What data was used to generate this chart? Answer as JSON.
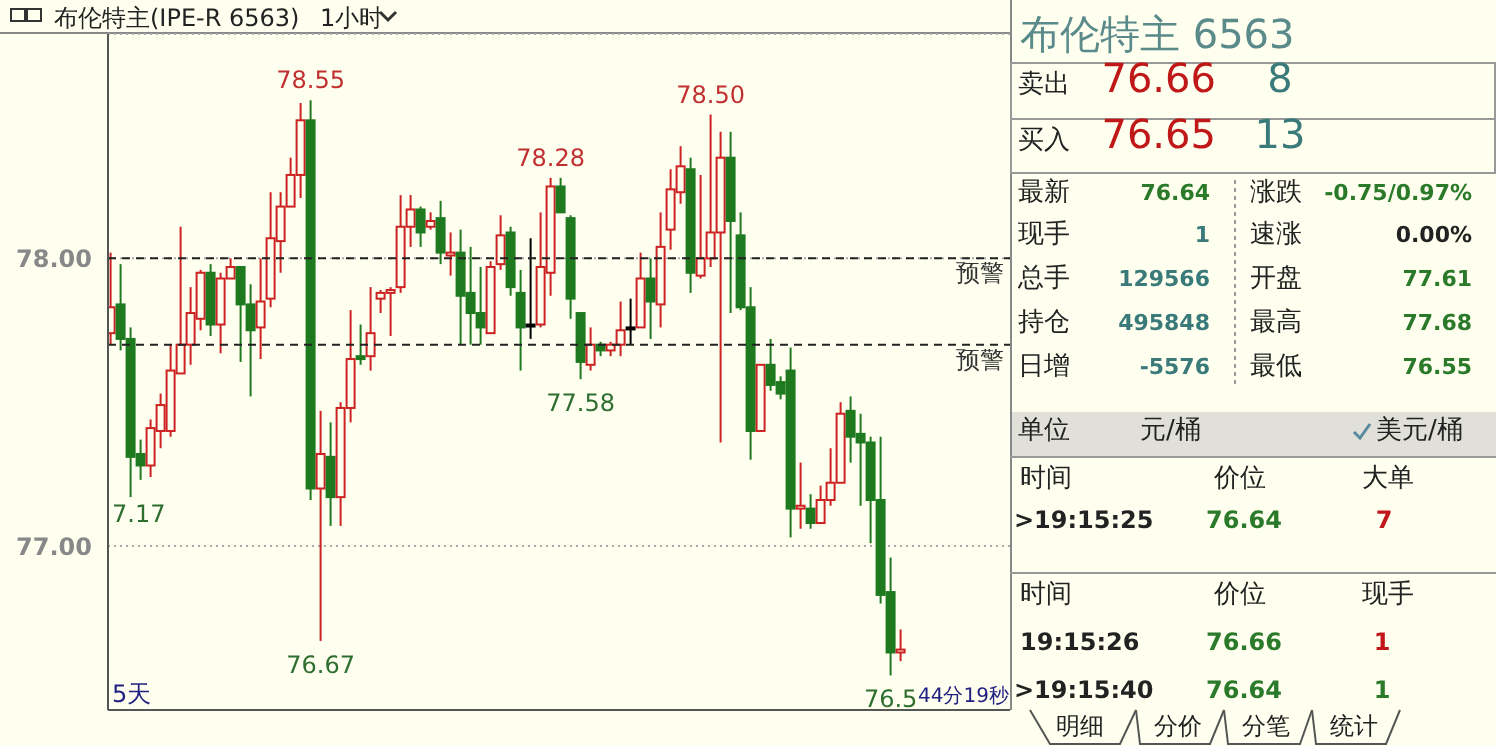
{
  "chart_data": [
    {
      "type": "candlestick",
      "title": "布伦特主(IPE-R 6563)",
      "subtitle": "1小时",
      "categories": [
        null,
        null,
        null,
        null,
        null,
        null,
        null,
        null,
        null,
        null,
        null,
        null,
        null,
        null,
        null,
        null,
        null,
        null,
        null,
        null,
        null,
        null,
        null,
        null,
        null,
        null,
        null,
        null,
        null,
        null,
        null,
        null,
        null,
        null,
        null,
        null,
        null,
        null,
        null,
        null,
        null,
        null,
        null,
        null,
        null,
        null,
        null,
        null,
        null,
        null,
        null,
        null,
        null,
        null,
        null,
        null,
        null,
        null,
        null,
        null,
        null,
        null,
        null,
        null,
        null,
        null,
        null,
        null,
        null,
        null,
        null,
        null,
        null,
        null,
        null,
        null,
        null,
        null,
        null,
        null
      ],
      "ohlc": [
        [
          77.74,
          78.02,
          77.7,
          77.83
        ],
        [
          77.84,
          77.98,
          77.68,
          77.72
        ],
        [
          77.72,
          77.76,
          77.17,
          77.31
        ],
        [
          77.32,
          77.37,
          77.23,
          77.28
        ],
        [
          77.28,
          77.44,
          77.24,
          77.41
        ],
        [
          77.4,
          77.53,
          77.34,
          77.49
        ],
        [
          77.4,
          77.7,
          77.38,
          77.61
        ],
        [
          77.6,
          78.11,
          77.6,
          77.7
        ],
        [
          77.7,
          77.9,
          77.63,
          77.81
        ],
        [
          77.79,
          77.96,
          77.75,
          77.95
        ],
        [
          77.95,
          77.98,
          77.73,
          77.77
        ],
        [
          77.77,
          77.95,
          77.67,
          77.93
        ],
        [
          77.93,
          78.0,
          77.93,
          77.97
        ],
        [
          77.97,
          77.97,
          77.64,
          77.84
        ],
        [
          77.84,
          77.91,
          77.52,
          77.75
        ],
        [
          77.76,
          78.0,
          77.65,
          77.85
        ],
        [
          77.86,
          78.23,
          77.83,
          78.07
        ],
        [
          78.06,
          78.23,
          77.95,
          78.18
        ],
        [
          78.18,
          78.35,
          78.18,
          78.29
        ],
        [
          78.29,
          78.54,
          78.21,
          78.48
        ],
        [
          78.48,
          78.55,
          77.16,
          77.2
        ],
        [
          77.2,
          77.47,
          76.67,
          77.32
        ],
        [
          77.31,
          77.43,
          77.07,
          77.17
        ],
        [
          77.17,
          77.5,
          77.07,
          77.48
        ],
        [
          77.48,
          77.82,
          77.43,
          77.65
        ],
        [
          77.66,
          77.77,
          77.63,
          77.65
        ],
        [
          77.66,
          77.9,
          77.61,
          77.74
        ],
        [
          77.86,
          77.89,
          77.81,
          77.88
        ],
        [
          77.88,
          77.9,
          77.73,
          77.89
        ],
        [
          77.9,
          78.22,
          77.88,
          78.11
        ],
        [
          78.11,
          78.22,
          78.04,
          78.17
        ],
        [
          78.17,
          78.18,
          78.04,
          78.09
        ],
        [
          78.11,
          78.16,
          78.1,
          78.13
        ],
        [
          78.14,
          78.2,
          77.98,
          78.02
        ],
        [
          78.01,
          78.09,
          77.94,
          78.02
        ],
        [
          78.02,
          78.1,
          77.7,
          77.87
        ],
        [
          77.88,
          78.04,
          77.7,
          77.81
        ],
        [
          77.81,
          77.97,
          77.7,
          77.76
        ],
        [
          77.74,
          77.99,
          77.74,
          77.97
        ],
        [
          77.98,
          78.15,
          77.96,
          78.08
        ],
        [
          78.09,
          78.11,
          77.87,
          77.9
        ],
        [
          77.88,
          77.96,
          77.61,
          77.76
        ],
        [
          77.77,
          78.07,
          77.72,
          77.77
        ],
        [
          77.77,
          78.16,
          77.76,
          77.97
        ],
        [
          77.95,
          78.28,
          77.87,
          78.25
        ],
        [
          78.25,
          78.28,
          78.16,
          78.16
        ],
        [
          78.14,
          78.15,
          77.79,
          77.86
        ],
        [
          77.81,
          77.81,
          77.58,
          77.64
        ],
        [
          77.63,
          77.76,
          77.61,
          77.7
        ],
        [
          77.7,
          77.71,
          77.66,
          77.68
        ],
        [
          77.68,
          77.71,
          77.66,
          77.7
        ],
        [
          77.7,
          77.85,
          77.66,
          77.75
        ],
        [
          77.76,
          77.86,
          77.7,
          77.76
        ],
        [
          77.76,
          78.02,
          77.76,
          77.93
        ],
        [
          77.93,
          78.0,
          77.72,
          77.85
        ],
        [
          77.84,
          78.16,
          77.76,
          78.04
        ],
        [
          78.1,
          78.31,
          78.03,
          78.24
        ],
        [
          78.23,
          78.39,
          78.19,
          78.32
        ],
        [
          78.31,
          78.35,
          77.88,
          77.95
        ],
        [
          77.94,
          78.29,
          77.93,
          78.0
        ],
        [
          78.0,
          78.5,
          77.97,
          78.09
        ],
        [
          78.09,
          78.44,
          77.36,
          78.35
        ],
        [
          78.35,
          78.44,
          77.81,
          78.13
        ],
        [
          78.08,
          78.16,
          77.82,
          77.83
        ],
        [
          77.83,
          77.9,
          77.3,
          77.4
        ],
        [
          77.4,
          77.63,
          77.4,
          77.63
        ],
        [
          77.63,
          77.72,
          77.54,
          77.56
        ],
        [
          77.57,
          77.59,
          77.51,
          77.53
        ],
        [
          77.61,
          77.69,
          77.03,
          77.13
        ],
        [
          77.13,
          77.29,
          77.06,
          77.14
        ],
        [
          77.13,
          77.18,
          77.06,
          77.08
        ],
        [
          77.08,
          77.21,
          77.08,
          77.16
        ],
        [
          77.16,
          77.34,
          77.14,
          77.22
        ],
        [
          77.22,
          77.5,
          77.22,
          77.46
        ],
        [
          77.47,
          77.52,
          77.29,
          77.38
        ],
        [
          77.39,
          77.46,
          77.14,
          77.36
        ],
        [
          77.36,
          77.38,
          77.01,
          77.16
        ],
        [
          77.16,
          77.38,
          76.8,
          76.83
        ],
        [
          76.84,
          76.96,
          76.55,
          76.63
        ],
        [
          76.63,
          76.71,
          76.6,
          76.64
        ]
      ],
      "colors": [
        "#cc2222",
        "#1f7a1f",
        "#1f7a1f",
        "#1f7a1f",
        "#cc2222",
        "#cc2222",
        "#cc2222",
        "#cc2222",
        "#cc2222",
        "#cc2222",
        "#1f7a1f",
        "#cc2222",
        "#cc2222",
        "#1f7a1f",
        "#1f7a1f",
        "#cc2222",
        "#cc2222",
        "#cc2222",
        "#cc2222",
        "#cc2222",
        "#1f7a1f",
        "#cc2222",
        "#1f7a1f",
        "#cc2222",
        "#cc2222",
        "#1f7a1f",
        "#cc2222",
        "#cc2222",
        "#cc2222",
        "#cc2222",
        "#cc2222",
        "#1f7a1f",
        "#cc2222",
        "#1f7a1f",
        "#cc2222",
        "#1f7a1f",
        "#1f7a1f",
        "#1f7a1f",
        "#cc2222",
        "#cc2222",
        "#1f7a1f",
        "#1f7a1f",
        "#000000",
        "#cc2222",
        "#cc2222",
        "#1f7a1f",
        "#1f7a1f",
        "#1f7a1f",
        "#cc2222",
        "#1f7a1f",
        "#cc2222",
        "#cc2222",
        "#000000",
        "#cc2222",
        "#1f7a1f",
        "#cc2222",
        "#cc2222",
        "#cc2222",
        "#1f7a1f",
        "#cc2222",
        "#cc2222",
        "#cc2222",
        "#1f7a1f",
        "#1f7a1f",
        "#1f7a1f",
        "#cc2222",
        "#1f7a1f",
        "#1f7a1f",
        "#1f7a1f",
        "#cc2222",
        "#1f7a1f",
        "#cc2222",
        "#cc2222",
        "#cc2222",
        "#1f7a1f",
        "#1f7a1f",
        "#1f7a1f",
        "#1f7a1f",
        "#1f7a1f",
        "#cc2222"
      ],
      "ylim": [
        76.43,
        78.78
      ],
      "yticks": [
        {
          "value": 77,
          "label": "77.00"
        },
        {
          "value": 78,
          "label": "78.00"
        }
      ],
      "grid": "y",
      "tick_labels": "y",
      "ref_lines": [
        {
          "axis": "y",
          "value": 78,
          "label": "预警",
          "line_style": "dashed"
        },
        {
          "axis": "y",
          "value": 77.7,
          "label": "预警",
          "line_style": "dashed"
        }
      ],
      "annotations": [
        {
          "text": "78.55",
          "y": 78.55
        },
        {
          "text": "76.67",
          "y": 76.67
        },
        {
          "text": "78.28",
          "y": 78.28
        },
        {
          "text": "77.58",
          "y": 77.58
        },
        {
          "text": "78.50",
          "y": 78.5
        },
        {
          "text": "76.5",
          "y": 76.55
        },
        "5天",
        "44分19秒",
        "7.17"
      ]
    },
    {
      "type": "other",
      "title": "布伦特主 6563",
      "annotations": [
        "卖出",
        "76.66",
        "8",
        "买入",
        "76.65",
        "13",
        "最新",
        "76.64",
        "涨跌",
        "-0.75/0.97%",
        "现手",
        "1",
        "速涨",
        "0.00%",
        "总手",
        "129566",
        "开盘",
        "77.61",
        "持仓",
        "495848",
        "最高",
        "77.68",
        "日增",
        "-5576",
        "最低",
        "76.55",
        "单位",
        "元/桶",
        "美元/桶",
        "时间",
        "价位",
        "大单",
        ">19:15:25",
        "76.64",
        "7",
        "时间",
        "价位",
        "现手",
        "19:15:26",
        "76.66",
        "1",
        ">19:15:40",
        "76.64",
        "1",
        "明细",
        "分价",
        "分笔",
        "统计"
      ]
    }
  ]
}
